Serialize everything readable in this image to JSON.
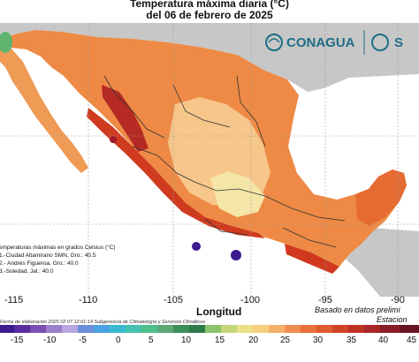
{
  "title_line1": "Temperatura máxima diaria (°C)",
  "title_line2": "del 06 de febrero de 2025",
  "logo_text": "CONAGUA",
  "logo_text2": "S",
  "x_axis_label": "Longitud",
  "x_ticks": [
    "-115",
    "-110",
    "-105",
    "-100",
    "-95",
    "-90"
  ],
  "note_right_1": "Basado en datos prelimi",
  "note_right_2": "Estacion",
  "credit": "Fecha de elaboración 2025 02 07 12:01:14 Subgerencia de Climatología y Servicios Climáticos",
  "legend": {
    "heading": "emperaturas máximas en grados Celsius (°C)",
    "items": [
      "1.-Ciudad Altamirano SMN, Gro.: 40.5",
      "2.- Andrés Figueroa, Gro.: 40.0",
      "3.-Soledad, Jal.: 40.0"
    ]
  },
  "colorbar_ticks": [
    "-15",
    "-10",
    "-5",
    "0",
    "5",
    "10",
    "15",
    "20",
    "25",
    "30",
    "35",
    "40",
    "45"
  ],
  "colors": {
    "background_land": "#c7c7c7",
    "ocean": "#ffffff",
    "cold": "#3b1b8f",
    "mild": "#f4e6a6",
    "hot": "#d94a1e",
    "very_hot": "#9e1c2b",
    "brand": "#1f6e86"
  }
}
